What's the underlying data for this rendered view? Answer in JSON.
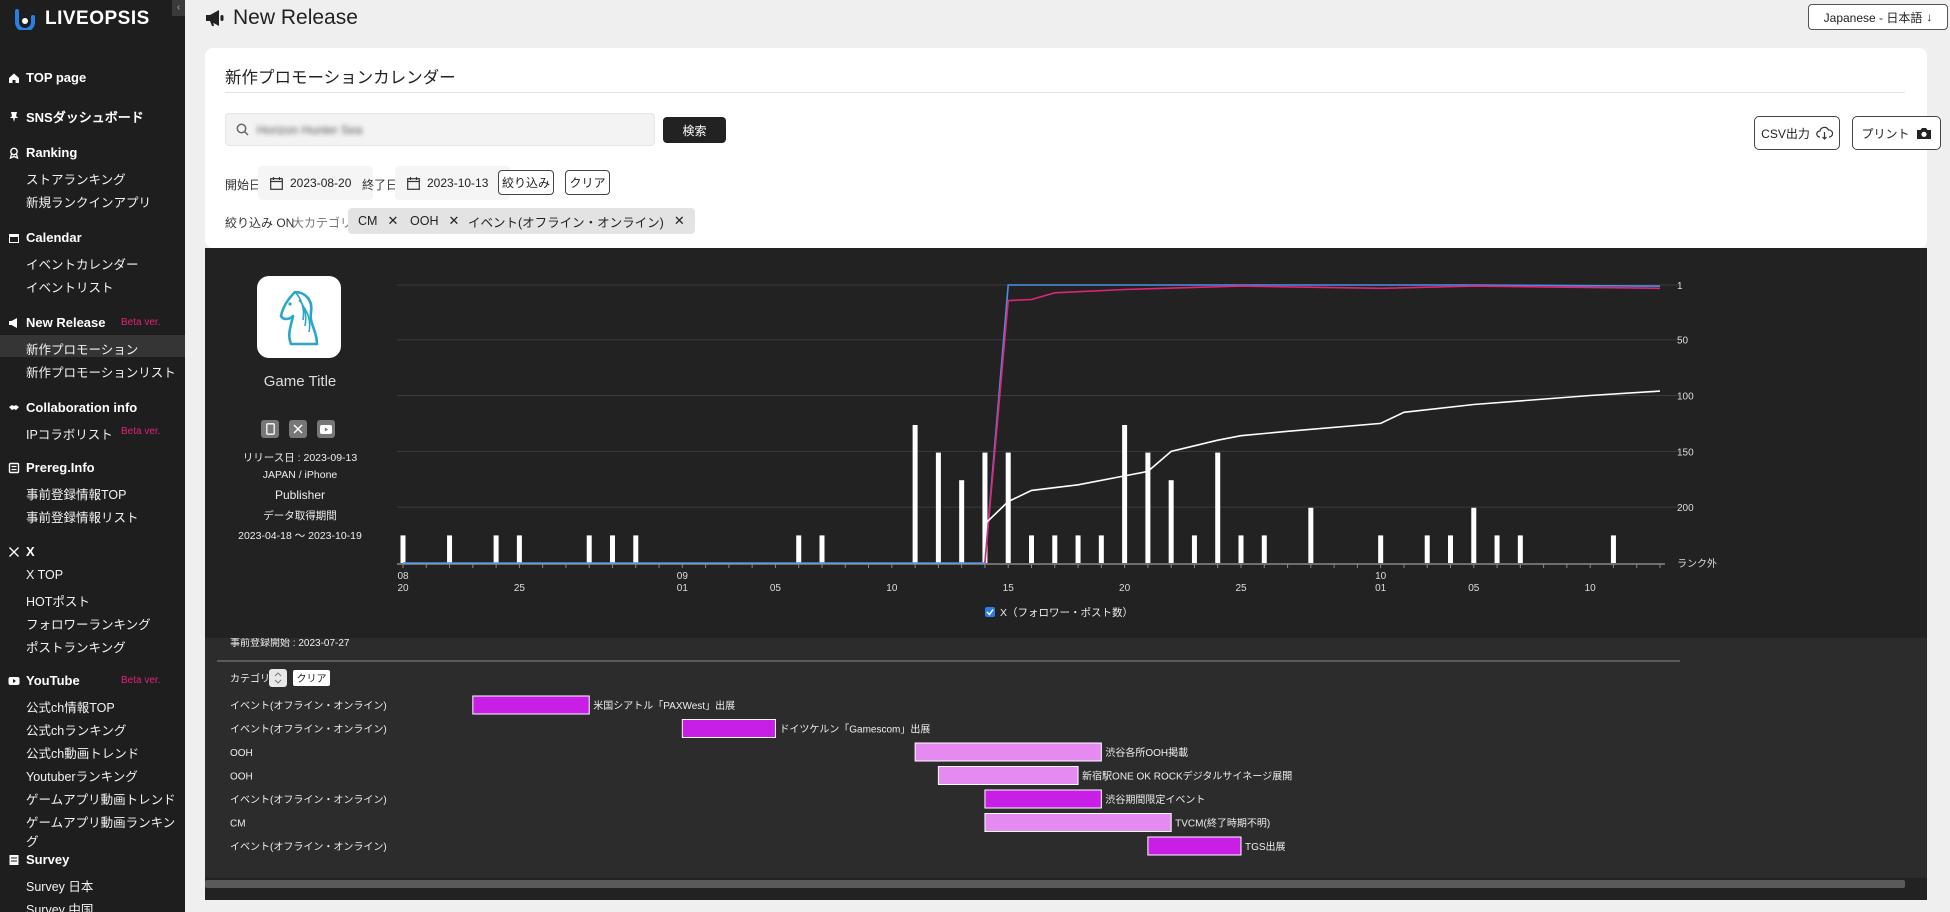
{
  "app": {
    "logo": "LIVEOPSIS",
    "collapse": "‹"
  },
  "sidebar": {
    "sections": [
      {
        "label": "TOP page",
        "icon": "home-icon",
        "items": []
      },
      {
        "label": "SNSダッシュボード",
        "icon": "pin-icon",
        "items": []
      },
      {
        "label": "Ranking",
        "icon": "award-icon",
        "items": [
          "ストアランキング",
          "新規ランクインアプリ"
        ]
      },
      {
        "label": "Calendar",
        "icon": "calendar-icon",
        "items": [
          "イベントカレンダー",
          "イベントリスト"
        ]
      },
      {
        "label": "New Release",
        "icon": "megaphone-icon",
        "beta": "Beta ver.",
        "items": [
          "新作プロモーション",
          "新作プロモーションリスト"
        ]
      },
      {
        "label": "Collaboration info",
        "icon": "handshake-icon",
        "items": [
          "IPコラボリスト"
        ],
        "item_beta": "Beta ver."
      },
      {
        "label": "Prereg.Info",
        "icon": "register-icon",
        "items": [
          "事前登録情報TOP",
          "事前登録情報リスト"
        ]
      },
      {
        "label": "X",
        "icon": "x-logo-icon",
        "items": [
          "X TOP",
          "HOTポスト",
          "フォロワーランキング",
          "ポストランキング"
        ]
      },
      {
        "label": "YouTube",
        "icon": "youtube-icon",
        "beta": "Beta ver.",
        "items": [
          "公式ch情報TOP",
          "公式chランキング",
          "公式ch動画トレンド",
          "Youtuberランキング",
          "ゲームアプリ動画トレンド",
          "ゲームアプリ動画ランキング"
        ]
      },
      {
        "label": "Survey",
        "icon": "survey-icon",
        "items": [
          "Survey 日本",
          "Survey 中国"
        ]
      }
    ]
  },
  "header": {
    "title": "New Release",
    "language": "Japanese - 日本語"
  },
  "card": {
    "title": "新作プロモーションカレンダー",
    "search_value": "Horizon Hunter Sea",
    "search_button": "検索",
    "csv_button": "CSV出力",
    "print_button": "プリント",
    "start_label": "開始日",
    "start_date": "2023-08-20",
    "end_label": "終了日",
    "end_date": "2023-10-13",
    "filter_button": "絞り込み",
    "clear_button": "クリア",
    "filter_status": "絞り込み ON",
    "category_label": "大カテゴリ:",
    "chips": [
      "CM",
      "OOH",
      "イベント(オフライン・オンライン)"
    ]
  },
  "game": {
    "title": "Game Title",
    "release": "リリース日 : 2023-09-13",
    "region": "JAPAN / iPhone",
    "publisher": "Publisher",
    "period_label": "データ取得期間",
    "period": "2023-04-18 〜 2023-10-19",
    "prereg": "事前登録開始 : 2023-07-27"
  },
  "chart_data": {
    "type": "bar",
    "x_dates": [
      "2023-08-20",
      "2023-10-13"
    ],
    "x_ticks": [
      {
        "d": "2023-08-20",
        "l1": "08",
        "l2": "20"
      },
      {
        "d": "2023-08-25",
        "l1": "",
        "l2": "25"
      },
      {
        "d": "2023-09-01",
        "l1": "09",
        "l2": "01"
      },
      {
        "d": "2023-09-05",
        "l1": "",
        "l2": "05"
      },
      {
        "d": "2023-09-10",
        "l1": "",
        "l2": "10"
      },
      {
        "d": "2023-09-15",
        "l1": "",
        "l2": "15"
      },
      {
        "d": "2023-09-20",
        "l1": "",
        "l2": "20"
      },
      {
        "d": "2023-09-25",
        "l1": "",
        "l2": "25"
      },
      {
        "d": "2023-10-01",
        "l1": "10",
        "l2": "01"
      },
      {
        "d": "2023-10-05",
        "l1": "",
        "l2": "05"
      },
      {
        "d": "2023-10-10",
        "l1": "",
        "l2": "10"
      }
    ],
    "rank_axis": {
      "ticks": [
        "1",
        "50",
        "100",
        "150",
        "200"
      ],
      "out_label": "ランク外",
      "max": 250
    },
    "bars": [
      {
        "d": "2023-08-20",
        "v": 1
      },
      {
        "d": "2023-08-22",
        "v": 1
      },
      {
        "d": "2023-08-24",
        "v": 1
      },
      {
        "d": "2023-08-25",
        "v": 1
      },
      {
        "d": "2023-08-28",
        "v": 1
      },
      {
        "d": "2023-08-29",
        "v": 1
      },
      {
        "d": "2023-08-30",
        "v": 1
      },
      {
        "d": "2023-09-06",
        "v": 1
      },
      {
        "d": "2023-09-07",
        "v": 1
      },
      {
        "d": "2023-09-11",
        "v": 5
      },
      {
        "d": "2023-09-12",
        "v": 4
      },
      {
        "d": "2023-09-13",
        "v": 3
      },
      {
        "d": "2023-09-14",
        "v": 4
      },
      {
        "d": "2023-09-15",
        "v": 4
      },
      {
        "d": "2023-09-16",
        "v": 1
      },
      {
        "d": "2023-09-17",
        "v": 1
      },
      {
        "d": "2023-09-18",
        "v": 1
      },
      {
        "d": "2023-09-19",
        "v": 1
      },
      {
        "d": "2023-09-20",
        "v": 5
      },
      {
        "d": "2023-09-21",
        "v": 4
      },
      {
        "d": "2023-09-22",
        "v": 3
      },
      {
        "d": "2023-09-23",
        "v": 1
      },
      {
        "d": "2023-09-24",
        "v": 4
      },
      {
        "d": "2023-09-25",
        "v": 1
      },
      {
        "d": "2023-09-26",
        "v": 1
      },
      {
        "d": "2023-09-28",
        "v": 2
      },
      {
        "d": "2023-10-01",
        "v": 1
      },
      {
        "d": "2023-10-03",
        "v": 1
      },
      {
        "d": "2023-10-04",
        "v": 1
      },
      {
        "d": "2023-10-05",
        "v": 2
      },
      {
        "d": "2023-10-06",
        "v": 1
      },
      {
        "d": "2023-10-07",
        "v": 1
      },
      {
        "d": "2023-10-11",
        "v": 1
      }
    ],
    "bar_max": 5,
    "series": [
      {
        "color": "#4a90e2",
        "points": [
          [
            "2023-08-20",
            250
          ],
          [
            "2023-09-14",
            250
          ],
          [
            "2023-09-15",
            1
          ],
          [
            "2023-10-05",
            1
          ],
          [
            "2023-10-13",
            2
          ]
        ]
      },
      {
        "color": "#e0247a",
        "points": [
          [
            "2023-09-14",
            250
          ],
          [
            "2023-09-15",
            15
          ],
          [
            "2023-09-16",
            14
          ],
          [
            "2023-09-17",
            8
          ],
          [
            "2023-09-20",
            5
          ],
          [
            "2023-09-25",
            2
          ],
          [
            "2023-10-01",
            4
          ],
          [
            "2023-10-05",
            2
          ],
          [
            "2023-10-13",
            4
          ]
        ]
      },
      {
        "color": "#ffffff",
        "points": [
          [
            "2023-09-14",
            215
          ],
          [
            "2023-09-15",
            195
          ],
          [
            "2023-09-16",
            185
          ],
          [
            "2023-09-18",
            180
          ],
          [
            "2023-09-20",
            172
          ],
          [
            "2023-09-21",
            168
          ],
          [
            "2023-09-22",
            150
          ],
          [
            "2023-09-23",
            145
          ],
          [
            "2023-09-24",
            140
          ],
          [
            "2023-09-25",
            136
          ],
          [
            "2023-09-27",
            132
          ],
          [
            "2023-10-01",
            125
          ],
          [
            "2023-10-02",
            115
          ],
          [
            "2023-10-05",
            108
          ],
          [
            "2023-10-10",
            100
          ],
          [
            "2023-10-13",
            96
          ]
        ]
      }
    ],
    "legend_label": "X（フォロワー・ポスト数）",
    "category_header": "カテゴリ",
    "category_clear": "クリア",
    "gantt": [
      {
        "cat": "イベント(オフライン・オンライン)",
        "start": "2023-08-23",
        "end": "2023-08-28",
        "label": "米国シアトル「PAXWest」出展",
        "color": "#c71fe6"
      },
      {
        "cat": "イベント(オフライン・オンライン)",
        "start": "2023-09-01",
        "end": "2023-09-05",
        "label": "ドイツケルン「Gamescom」出展",
        "color": "#c71fe6"
      },
      {
        "cat": "OOH",
        "start": "2023-09-11",
        "end": "2023-09-19",
        "label": "渋谷各所OOH掲載",
        "color": "#e48af0"
      },
      {
        "cat": "OOH",
        "start": "2023-09-12",
        "end": "2023-09-18",
        "label": "新宿駅ONE OK ROCKデジタルサイネージ展開",
        "color": "#e48af0"
      },
      {
        "cat": "イベント(オフライン・オンライン)",
        "start": "2023-09-14",
        "end": "2023-09-19",
        "label": "渋谷期間限定イベント",
        "color": "#c71fe6"
      },
      {
        "cat": "CM",
        "start": "2023-09-14",
        "end": "2023-09-22",
        "label": "TVCM(終了時期不明)",
        "color": "#e48af0"
      },
      {
        "cat": "イベント(オフライン・オンライン)",
        "start": "2023-09-21",
        "end": "2023-09-25",
        "label": "TGS出展",
        "color": "#c71fe6"
      }
    ]
  }
}
